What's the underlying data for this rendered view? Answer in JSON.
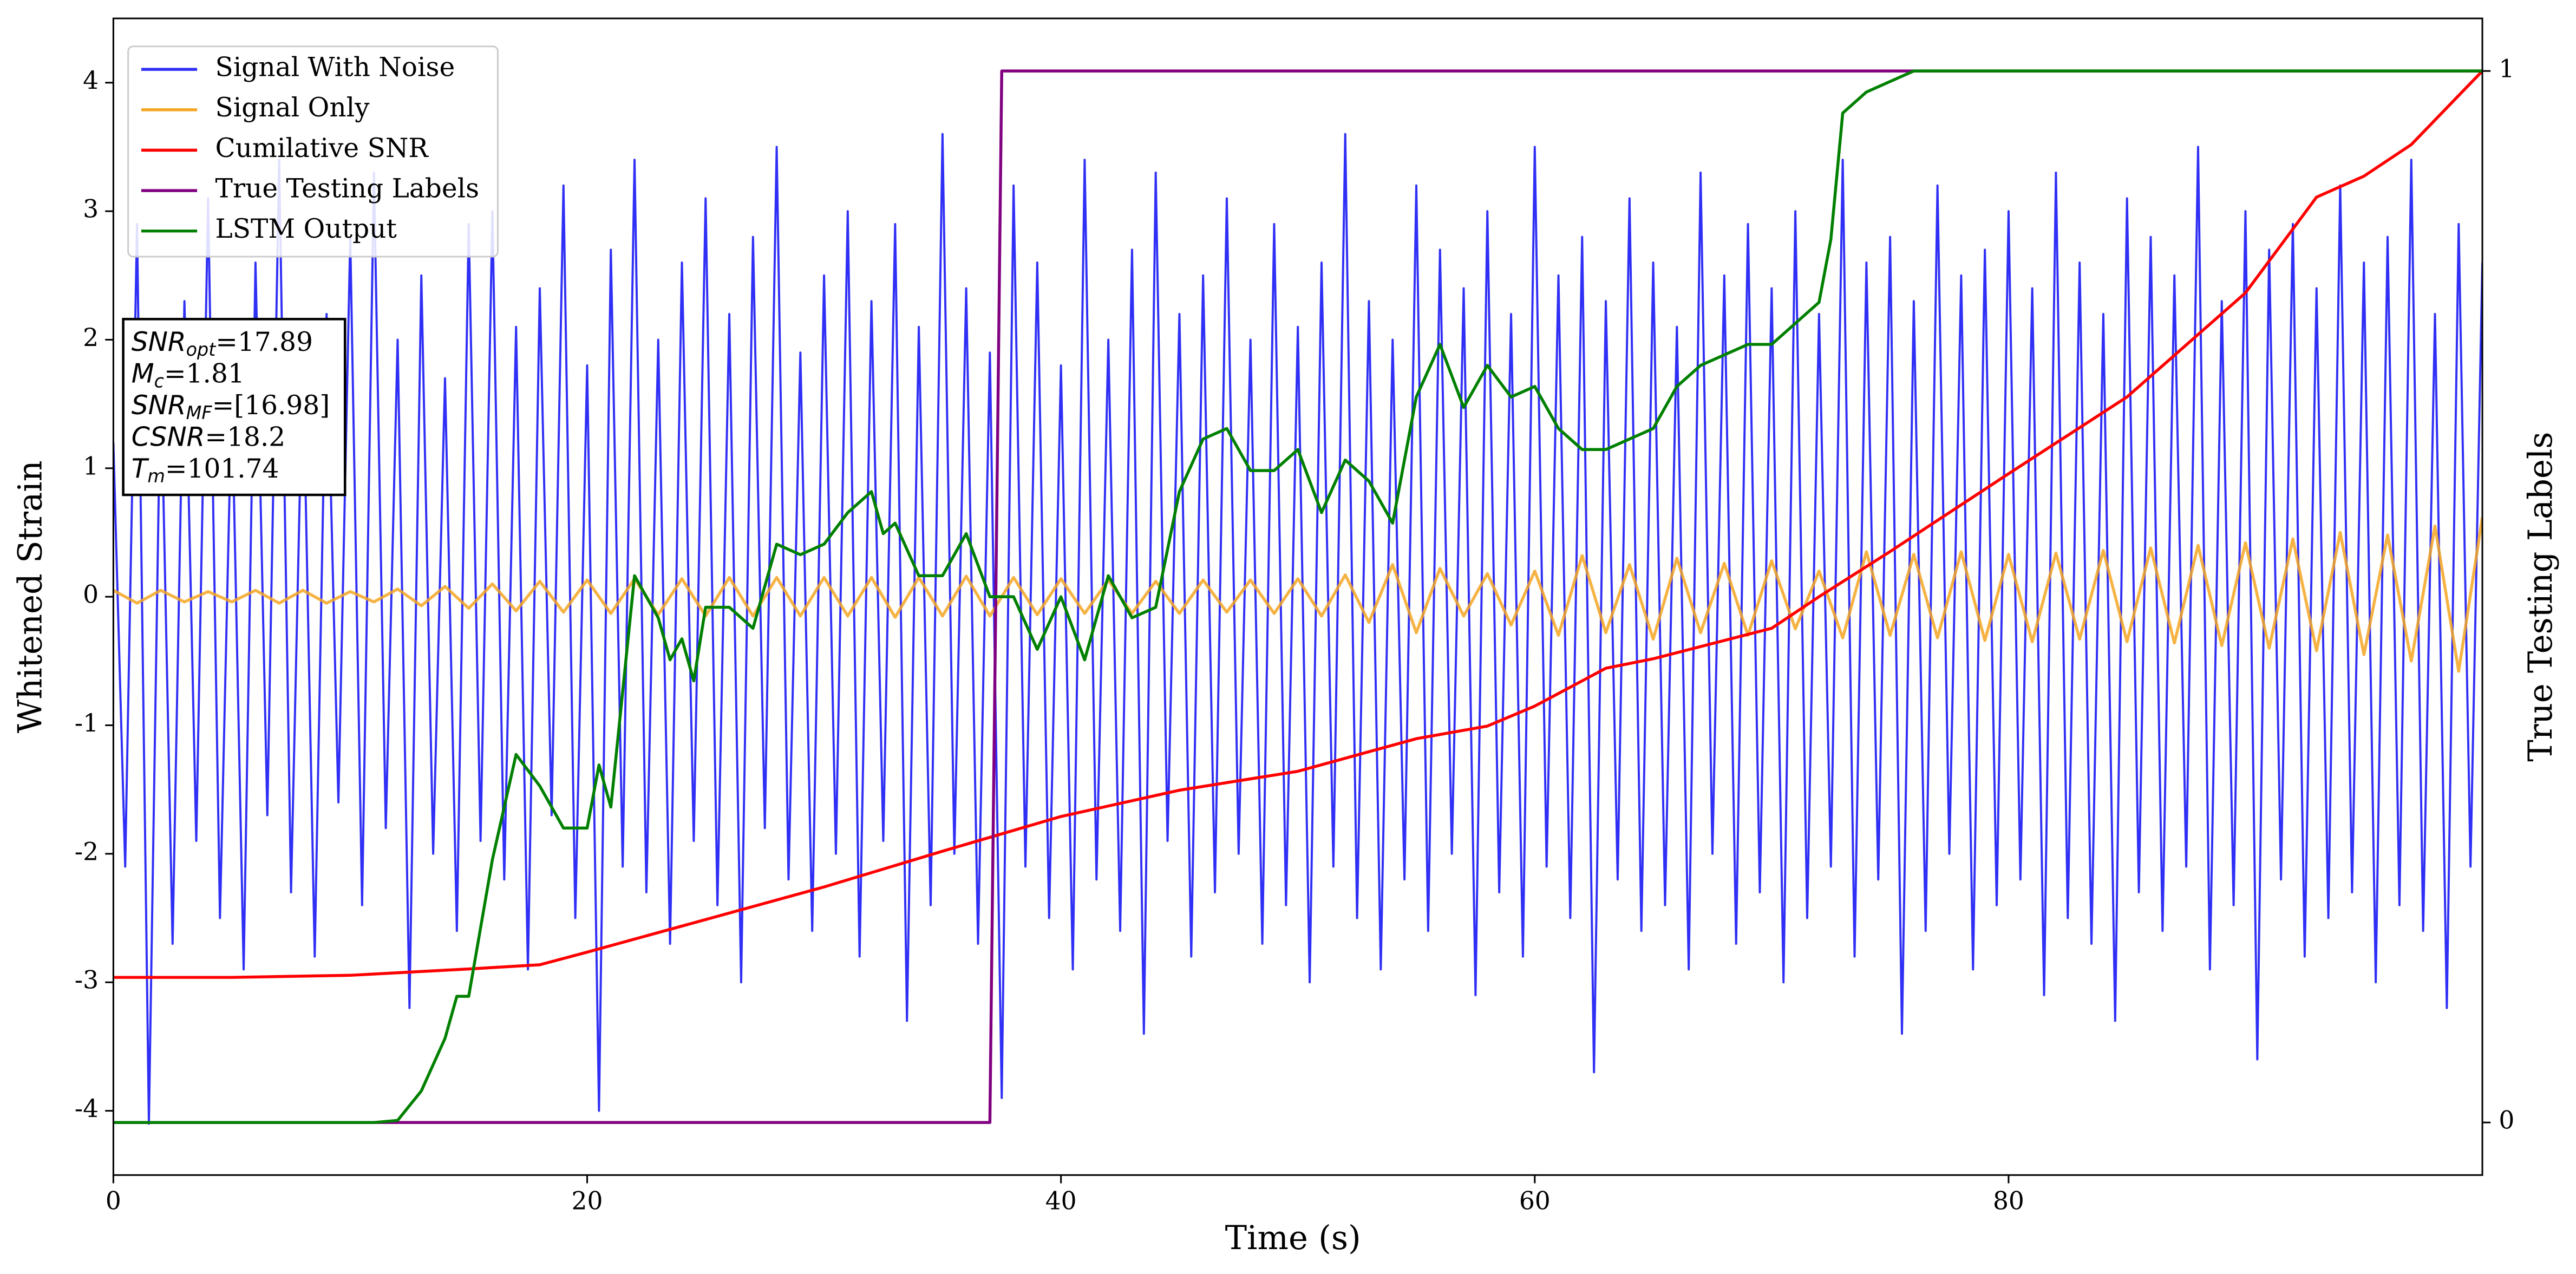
{
  "chart_data": {
    "type": "line",
    "xlabel": "Time (s)",
    "ylabel": "Whitened Strain",
    "y2label": "True Testing Labels",
    "xlim": [
      0,
      100
    ],
    "xticks": [
      0,
      20,
      40,
      60,
      80
    ],
    "ylim": [
      -4.5,
      4.5
    ],
    "yticks": [
      -4,
      -3,
      -2,
      -1,
      0,
      1,
      2,
      3,
      4
    ],
    "y2lim": [
      -0.05,
      1.05
    ],
    "y2ticks": [
      0,
      1
    ],
    "legend": "upper left",
    "annotation": [
      {
        "var": "SNR",
        "sub": "opt",
        "text": "=17.89"
      },
      {
        "var": "M",
        "sub": "c",
        "text": "=1.81"
      },
      {
        "var": "SNR",
        "sub": "MF",
        "text": "=[16.98]"
      },
      {
        "var": "CSNR",
        "sub": null,
        "text": "=18.2"
      },
      {
        "var": "T",
        "sub": "m",
        "text": "=101.74"
      }
    ],
    "series": [
      {
        "name": "Signal With Noise",
        "color": "#2f2ff5",
        "axis": "y",
        "x": [
          0,
          0.5,
          1,
          1.5,
          2,
          2.5,
          3,
          3.5,
          4,
          4.5,
          5,
          5.5,
          6,
          6.5,
          7,
          7.5,
          8,
          8.5,
          9,
          9.5,
          10,
          10.5,
          11,
          11.5,
          12,
          12.5,
          13,
          13.5,
          14,
          14.5,
          15,
          15.5,
          16,
          16.5,
          17,
          17.5,
          18,
          18.5,
          19,
          19.5,
          20,
          20.5,
          21,
          21.5,
          22,
          22.5,
          23,
          23.5,
          24,
          24.5,
          25,
          25.5,
          26,
          26.5,
          27,
          27.5,
          28,
          28.5,
          29,
          29.5,
          30,
          30.5,
          31,
          31.5,
          32,
          32.5,
          33,
          33.5,
          34,
          34.5,
          35,
          35.5,
          36,
          36.5,
          37,
          37.5,
          38,
          38.5,
          39,
          39.5,
          40,
          40.5,
          41,
          41.5,
          42,
          42.5,
          43,
          43.5,
          44,
          44.5,
          45,
          45.5,
          46,
          46.5,
          47,
          47.5,
          48,
          48.5,
          49,
          49.5,
          50,
          50.5,
          51,
          51.5,
          52,
          52.5,
          53,
          53.5,
          54,
          54.5,
          55,
          55.5,
          56,
          56.5,
          57,
          57.5,
          58,
          58.5,
          59,
          59.5,
          60,
          60.5,
          61,
          61.5,
          62,
          62.5,
          63,
          63.5,
          64,
          64.5,
          65,
          65.5,
          66,
          66.5,
          67,
          67.5,
          68,
          68.5,
          69,
          69.5,
          70,
          70.5,
          71,
          71.5,
          72,
          72.5,
          73,
          73.5,
          74,
          74.5,
          75,
          75.5,
          76,
          76.5,
          77,
          77.5,
          78,
          78.5,
          79,
          79.5,
          80,
          80.5,
          81,
          81.5,
          82,
          82.5,
          83,
          83.5,
          84,
          84.5,
          85,
          85.5,
          86,
          86.5,
          87,
          87.5,
          88,
          88.5,
          89,
          89.5,
          90,
          90.5,
          91,
          91.5,
          92,
          92.5,
          93,
          93.5,
          94,
          94.5,
          95,
          95.5,
          96,
          96.5,
          97,
          97.5,
          98,
          98.5,
          99,
          99.5,
          100
        ],
        "values": [
          1.2,
          -2.1,
          2.9,
          -4.1,
          1.8,
          -2.7,
          2.3,
          -1.9,
          3.1,
          -2.5,
          1.6,
          -2.9,
          2.6,
          -1.7,
          3.4,
          -2.3,
          1.9,
          -2.8,
          2.2,
          -1.6,
          2.8,
          -2.4,
          3.3,
          -1.8,
          2.0,
          -3.2,
          2.5,
          -2.0,
          1.7,
          -2.6,
          2.9,
          -1.9,
          3.0,
          -2.2,
          2.1,
          -2.9,
          2.4,
          -1.7,
          3.2,
          -2.5,
          1.8,
          -4.0,
          2.7,
          -2.1,
          3.4,
          -2.3,
          2.0,
          -2.7,
          2.6,
          -1.9,
          3.1,
          -2.4,
          2.2,
          -3.0,
          2.8,
          -1.8,
          3.5,
          -2.2,
          1.9,
          -2.6,
          2.5,
          -2.0,
          3.0,
          -2.8,
          2.3,
          -1.9,
          2.9,
          -3.3,
          2.1,
          -2.4,
          3.6,
          -2.0,
          2.4,
          -2.7,
          1.9,
          -3.9,
          3.2,
          -2.1,
          2.6,
          -2.5,
          1.8,
          -2.9,
          3.4,
          -2.2,
          2.0,
          -2.6,
          2.7,
          -3.4,
          3.3,
          -1.9,
          2.2,
          -2.8,
          2.5,
          -2.3,
          3.1,
          -2.0,
          2.0,
          -2.7,
          2.9,
          -2.4,
          2.1,
          -3.0,
          2.6,
          -2.1,
          3.6,
          -2.5,
          2.3,
          -2.9,
          2.0,
          -2.2,
          3.2,
          -2.6,
          2.7,
          -2.0,
          2.4,
          -3.1,
          3.0,
          -2.3,
          2.2,
          -2.8,
          3.5,
          -2.1,
          2.5,
          -2.5,
          2.8,
          -3.7,
          2.3,
          -2.2,
          3.1,
          -2.6,
          2.6,
          -2.4,
          2.1,
          -2.9,
          3.3,
          -2.0,
          2.5,
          -2.7,
          2.9,
          -2.3,
          2.4,
          -3.0,
          3.0,
          -2.5,
          2.2,
          -2.1,
          3.4,
          -2.8,
          2.6,
          -2.2,
          2.8,
          -3.4,
          2.3,
          -2.6,
          3.2,
          -2.0,
          2.5,
          -2.9,
          2.7,
          -2.4,
          3.0,
          -2.2,
          2.4,
          -3.1,
          3.3,
          -2.5,
          2.6,
          -2.7,
          2.2,
          -3.3,
          3.1,
          -2.3,
          2.8,
          -2.6,
          2.5,
          -2.1,
          3.5,
          -2.9,
          2.3,
          -2.4,
          3.0,
          -3.6,
          2.7,
          -2.2,
          2.9,
          -2.8,
          2.4,
          -2.5,
          3.2,
          -2.3,
          2.6,
          -3.0,
          2.8,
          -2.4,
          3.4,
          -2.6,
          2.2,
          -3.2,
          2.9,
          -2.1,
          2.6
        ]
      },
      {
        "name": "Signal Only",
        "color": "#f5a623",
        "axis": "y",
        "x": [
          0,
          1,
          2,
          3,
          4,
          5,
          6,
          7,
          8,
          9,
          10,
          11,
          12,
          13,
          14,
          15,
          16,
          17,
          18,
          19,
          20,
          21,
          22,
          23,
          24,
          25,
          26,
          27,
          28,
          29,
          30,
          31,
          32,
          33,
          34,
          35,
          36,
          37,
          38,
          39,
          40,
          41,
          42,
          43,
          44,
          45,
          46,
          47,
          48,
          49,
          50,
          51,
          52,
          53,
          54,
          55,
          56,
          57,
          58,
          59,
          60,
          61,
          62,
          63,
          64,
          65,
          66,
          67,
          68,
          69,
          70,
          71,
          72,
          73,
          74,
          75,
          76,
          77,
          78,
          79,
          80,
          81,
          82,
          83,
          84,
          85,
          86,
          87,
          88,
          89,
          90,
          91,
          92,
          93,
          94,
          95,
          96,
          97,
          98,
          99,
          100
        ],
        "values": [
          0.05,
          -0.05,
          0.05,
          -0.04,
          0.04,
          -0.04,
          0.05,
          -0.05,
          0.05,
          -0.05,
          0.04,
          -0.04,
          0.06,
          -0.07,
          0.08,
          -0.09,
          0.1,
          -0.11,
          0.12,
          -0.12,
          0.13,
          -0.13,
          0.14,
          -0.14,
          0.14,
          -0.15,
          0.15,
          -0.15,
          0.15,
          -0.15,
          0.15,
          -0.15,
          0.15,
          -0.16,
          0.15,
          -0.15,
          0.16,
          -0.15,
          0.15,
          -0.14,
          0.14,
          -0.13,
          0.13,
          -0.13,
          0.12,
          -0.13,
          0.13,
          -0.12,
          0.13,
          -0.13,
          0.14,
          -0.15,
          0.17,
          -0.2,
          0.25,
          -0.28,
          0.22,
          -0.15,
          0.18,
          -0.22,
          0.2,
          -0.3,
          0.32,
          -0.28,
          0.25,
          -0.33,
          0.3,
          -0.28,
          0.26,
          -0.3,
          0.28,
          -0.25,
          0.2,
          -0.32,
          0.35,
          -0.3,
          0.33,
          -0.32,
          0.35,
          -0.34,
          0.33,
          -0.35,
          0.34,
          -0.33,
          0.36,
          -0.35,
          0.38,
          -0.36,
          0.4,
          -0.38,
          0.42,
          -0.4,
          0.45,
          -0.42,
          0.5,
          -0.45,
          0.48,
          -0.5,
          0.55,
          -0.58,
          0.62
        ]
      },
      {
        "name": "Cumilative SNR",
        "color": "#ff0000",
        "axis": "y2",
        "x": [
          0,
          5,
          10,
          15,
          18,
          20,
          25,
          30,
          35,
          40,
          45,
          50,
          55,
          58,
          60,
          63,
          65,
          70,
          72,
          75,
          80,
          85,
          90,
          93,
          95,
          97,
          100
        ],
        "values": [
          0.138,
          0.138,
          0.14,
          0.146,
          0.15,
          0.162,
          0.193,
          0.224,
          0.258,
          0.291,
          0.316,
          0.334,
          0.365,
          0.377,
          0.396,
          0.432,
          0.441,
          0.47,
          0.5,
          0.543,
          0.617,
          0.69,
          0.789,
          0.88,
          0.9,
          0.93,
          1.0
        ]
      },
      {
        "name": "True Testing Labels",
        "color": "#800080",
        "axis": "y2",
        "x": [
          0,
          37,
          37.5,
          100
        ],
        "values": [
          0,
          0,
          1,
          1
        ]
      },
      {
        "name": "LSTM Output",
        "color": "#008000",
        "axis": "y2",
        "x": [
          0,
          11,
          12,
          13,
          14,
          14.5,
          15,
          16,
          17,
          18,
          19,
          20,
          20.5,
          21,
          22,
          23,
          23.5,
          24,
          24.5,
          25,
          26,
          27,
          28,
          29,
          30,
          31,
          32,
          32.5,
          33,
          34,
          35,
          36,
          37,
          38,
          39,
          40,
          41,
          42,
          43,
          44,
          45,
          46,
          47,
          48,
          49,
          50,
          51,
          52,
          53,
          54,
          55,
          56,
          57,
          58,
          59,
          60,
          61,
          62,
          63,
          64,
          65,
          66,
          67,
          68,
          69,
          70,
          71,
          72,
          72.5,
          73,
          74,
          75,
          76,
          77,
          100
        ],
        "values": [
          0,
          0,
          0.002,
          0.03,
          0.08,
          0.12,
          0.12,
          0.25,
          0.35,
          0.32,
          0.28,
          0.28,
          0.34,
          0.3,
          0.52,
          0.48,
          0.44,
          0.46,
          0.42,
          0.49,
          0.49,
          0.47,
          0.55,
          0.54,
          0.55,
          0.58,
          0.6,
          0.56,
          0.57,
          0.52,
          0.52,
          0.56,
          0.5,
          0.5,
          0.45,
          0.5,
          0.44,
          0.52,
          0.48,
          0.49,
          0.6,
          0.65,
          0.66,
          0.62,
          0.62,
          0.64,
          0.58,
          0.63,
          0.61,
          0.57,
          0.69,
          0.74,
          0.68,
          0.72,
          0.69,
          0.7,
          0.66,
          0.64,
          0.64,
          0.65,
          0.66,
          0.7,
          0.72,
          0.73,
          0.74,
          0.74,
          0.76,
          0.78,
          0.84,
          0.96,
          0.98,
          0.99,
          1.0,
          1.0,
          1.0
        ]
      }
    ]
  }
}
